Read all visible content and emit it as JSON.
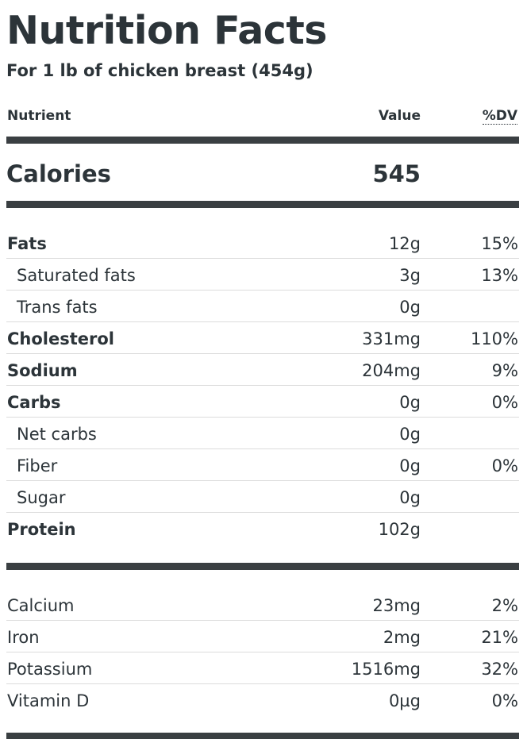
{
  "title": "Nutrition Facts",
  "subtitle": "For 1 lb of chicken breast (454g)",
  "columns": {
    "nutrient": "Nutrient",
    "value": "Value",
    "dv": "%DV"
  },
  "calories": {
    "label": "Calories",
    "value": "545"
  },
  "macros": [
    {
      "name": "Fats",
      "value": "12g",
      "dv": "15%",
      "bold": true,
      "indent": false
    },
    {
      "name": "Saturated fats",
      "value": "3g",
      "dv": "13%",
      "bold": false,
      "indent": true
    },
    {
      "name": "Trans fats",
      "value": "0g",
      "dv": "",
      "bold": false,
      "indent": true
    },
    {
      "name": "Cholesterol",
      "value": "331mg",
      "dv": "110%",
      "bold": true,
      "indent": false
    },
    {
      "name": "Sodium",
      "value": "204mg",
      "dv": "9%",
      "bold": true,
      "indent": false
    },
    {
      "name": "Carbs",
      "value": "0g",
      "dv": "0%",
      "bold": true,
      "indent": false
    },
    {
      "name": "Net carbs",
      "value": "0g",
      "dv": "",
      "bold": false,
      "indent": true
    },
    {
      "name": "Fiber",
      "value": "0g",
      "dv": "0%",
      "bold": false,
      "indent": true
    },
    {
      "name": "Sugar",
      "value": "0g",
      "dv": "",
      "bold": false,
      "indent": true
    },
    {
      "name": "Protein",
      "value": "102g",
      "dv": "",
      "bold": true,
      "indent": false
    }
  ],
  "micros": [
    {
      "name": "Calcium",
      "value": "23mg",
      "dv": "2%"
    },
    {
      "name": "Iron",
      "value": "2mg",
      "dv": "21%"
    },
    {
      "name": "Potassium",
      "value": "1516mg",
      "dv": "32%"
    },
    {
      "name": "Vitamin D",
      "value": "0µg",
      "dv": "0%"
    }
  ]
}
